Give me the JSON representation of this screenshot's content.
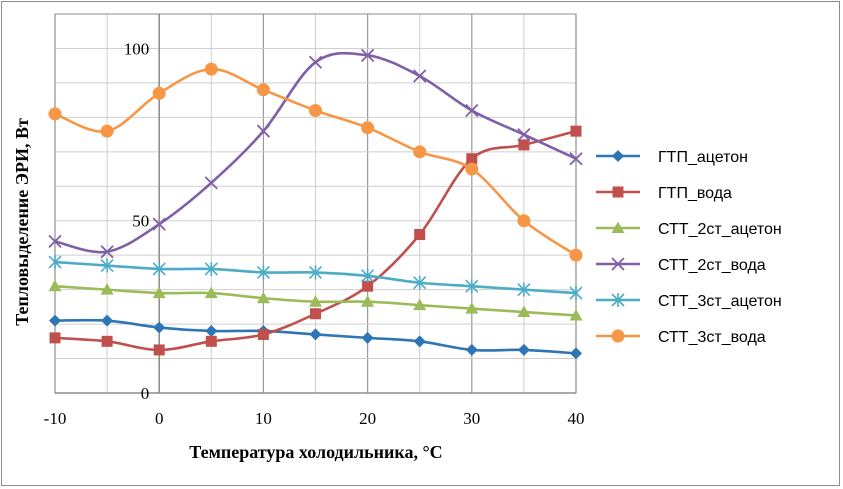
{
  "chart_data": {
    "type": "line",
    "title": "",
    "xlabel": "Температура холодильника, °С",
    "ylabel": "Тепловыделение ЭРИ, Вт",
    "x": [
      -10,
      -5,
      0,
      5,
      10,
      15,
      20,
      25,
      30,
      35,
      40
    ],
    "xlim": [
      -10,
      40
    ],
    "ylim": [
      0,
      110
    ],
    "x_ticks": [
      "-10",
      "0",
      "10",
      "20",
      "30",
      "40"
    ],
    "y_ticks": [
      "0",
      "50",
      "100"
    ],
    "grid": true,
    "legend_position": "right",
    "series": [
      {
        "name": "ГТП_ацетон",
        "color": "#2e75b6",
        "marker": "diamond",
        "values": [
          21,
          21,
          19,
          18,
          18,
          17,
          16,
          15,
          12.5,
          12.5,
          11.5
        ]
      },
      {
        "name": "ГТП_вода",
        "color": "#c0504d",
        "marker": "square",
        "values": [
          16,
          15,
          12.5,
          15,
          17,
          23,
          31,
          46,
          68,
          72,
          76
        ]
      },
      {
        "name": "СТТ_2ст_ацетон",
        "color": "#9bbb59",
        "marker": "triangle",
        "values": [
          31,
          30,
          29,
          29,
          27.5,
          26.5,
          26.5,
          25.5,
          24.5,
          23.5,
          22.5
        ]
      },
      {
        "name": "СТТ_2ст_вода",
        "color": "#7f5fa8",
        "marker": "x",
        "values": [
          44,
          41,
          49,
          61,
          76,
          96,
          98,
          92,
          82,
          75,
          68
        ]
      },
      {
        "name": "СТТ_3ст_ацетон",
        "color": "#4bacc6",
        "marker": "star",
        "values": [
          38,
          37,
          36,
          36,
          35,
          35,
          34,
          32,
          31,
          30,
          29
        ]
      },
      {
        "name": "СТТ_3ст_вода",
        "color": "#f79646",
        "marker": "circle",
        "values": [
          81,
          76,
          87,
          94,
          88,
          82,
          77,
          70,
          65,
          50,
          40
        ]
      }
    ]
  }
}
